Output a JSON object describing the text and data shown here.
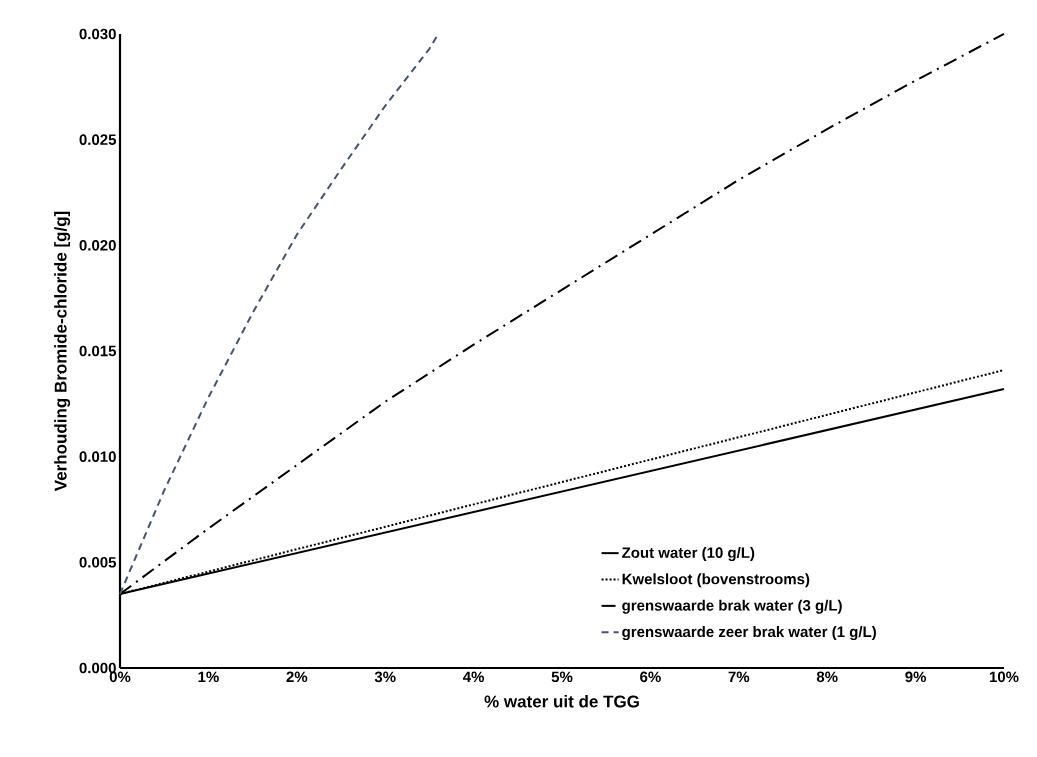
{
  "chart_data": {
    "type": "line",
    "xlabel": "% water uit de TGG",
    "ylabel": "Verhouding Bromide-chloride [g/g]",
    "xlim": [
      0,
      10
    ],
    "ylim": [
      0,
      0.03
    ],
    "xticks": [
      {
        "value": 0,
        "label": "0%"
      },
      {
        "value": 1,
        "label": "1%"
      },
      {
        "value": 2,
        "label": "2%"
      },
      {
        "value": 3,
        "label": "3%"
      },
      {
        "value": 4,
        "label": "4%"
      },
      {
        "value": 5,
        "label": "5%"
      },
      {
        "value": 6,
        "label": "6%"
      },
      {
        "value": 7,
        "label": "7%"
      },
      {
        "value": 8,
        "label": "8%"
      },
      {
        "value": 9,
        "label": "9%"
      },
      {
        "value": 10,
        "label": "10%"
      }
    ],
    "yticks": [
      {
        "value": 0,
        "label": "0.000"
      },
      {
        "value": 0.005,
        "label": "0.005"
      },
      {
        "value": 0.01,
        "label": "0.010"
      },
      {
        "value": 0.015,
        "label": "0.015"
      },
      {
        "value": 0.02,
        "label": "0.020"
      },
      {
        "value": 0.025,
        "label": "0.025"
      },
      {
        "value": 0.03,
        "label": "0.030"
      }
    ],
    "grid": false,
    "legend": "bottom right",
    "marker": "none",
    "series": [
      {
        "name": "Zout water (10 g/L)",
        "color": "#000000",
        "line_style": "solid",
        "x": [
          0,
          10
        ],
        "values": [
          0.0035,
          0.0132
        ]
      },
      {
        "name": "Kwelsloot (bovenstrooms)",
        "color": "#000000",
        "line_style": "dotted",
        "x": [
          0,
          10
        ],
        "values": [
          0.0035,
          0.0141
        ]
      },
      {
        "name": "grenswaarde brak water (3 g/L)",
        "color": "#000000",
        "line_style": "dashdot",
        "x": [
          0,
          1,
          2,
          3,
          4,
          5,
          6,
          7,
          8,
          9,
          10
        ],
        "values": [
          0.0035,
          0.0066,
          0.0096,
          0.0126,
          0.0153,
          0.0179,
          0.0205,
          0.0231,
          0.0255,
          0.0278,
          0.03
        ]
      },
      {
        "name": "grenswaarde zeer brak water (1 g/L)",
        "color": "#44546a",
        "line_style": "dashed",
        "x": [
          0,
          0.5,
          1,
          1.5,
          2,
          2.5,
          3,
          3.5,
          3.6
        ],
        "values": [
          0.0035,
          0.0084,
          0.0128,
          0.0168,
          0.0205,
          0.0236,
          0.0266,
          0.0293,
          0.03
        ]
      }
    ]
  }
}
